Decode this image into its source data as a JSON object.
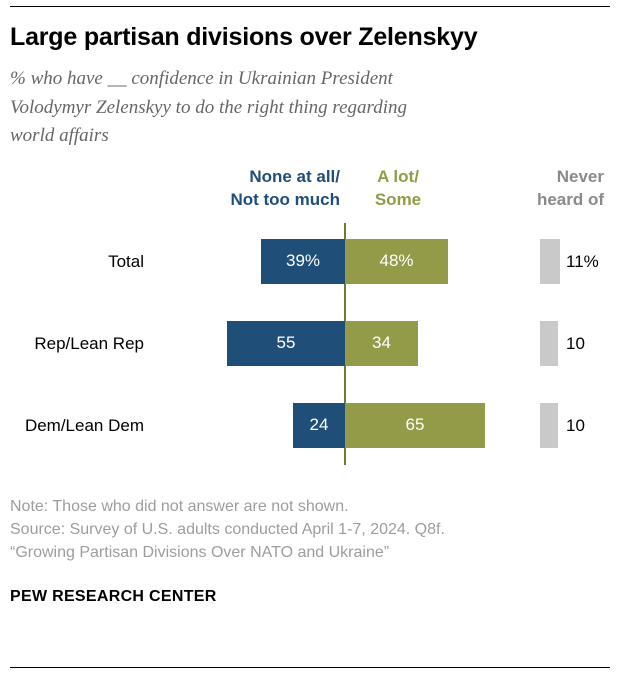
{
  "header": {
    "title": "Large partisan divisions over Zelenskyy",
    "subtitle_lines": [
      "% who have __ confidence in Ukrainian President",
      "Volodymyr Zelenskyy to do the right thing regarding",
      "world affairs"
    ]
  },
  "chart_data": {
    "type": "bar",
    "orientation": "horizontal-diverging",
    "categories": [
      "Total",
      "Rep/Lean Rep",
      "Dem/Lean Dem"
    ],
    "series": [
      {
        "name": "None at all/Not too much",
        "color": "#1f4e79",
        "values": [
          39,
          55,
          24
        ],
        "labels": [
          "39%",
          "55",
          "24"
        ]
      },
      {
        "name": "A lot/Some",
        "color": "#939b49",
        "values": [
          48,
          34,
          65
        ],
        "labels": [
          "48%",
          "34",
          "65"
        ]
      },
      {
        "name": "Never heard of",
        "color": "#c9c9c9",
        "values": [
          11,
          10,
          10
        ],
        "labels": [
          "11%",
          "10",
          "10"
        ]
      }
    ],
    "legend": {
      "col1_line1": "None at all/",
      "col1_line2": "Not too much",
      "col2_line1": "A lot/",
      "col2_line2": "Some",
      "col3_line1": "Never",
      "col3_line2": "heard of",
      "col3_color": "#8a8a8a"
    },
    "axis_line_color": "#6f7a35",
    "value_unit": "%",
    "xlim": [
      0,
      100
    ],
    "grid": false
  },
  "footer": {
    "note": "Note: Those who did not answer are not shown.",
    "source": "Source: Survey of U.S. adults conducted April 1-7, 2024. Q8f.",
    "quote": "“Growing Partisan Divisions Over NATO and Ukraine”",
    "brand": "PEW RESEARCH CENTER"
  }
}
